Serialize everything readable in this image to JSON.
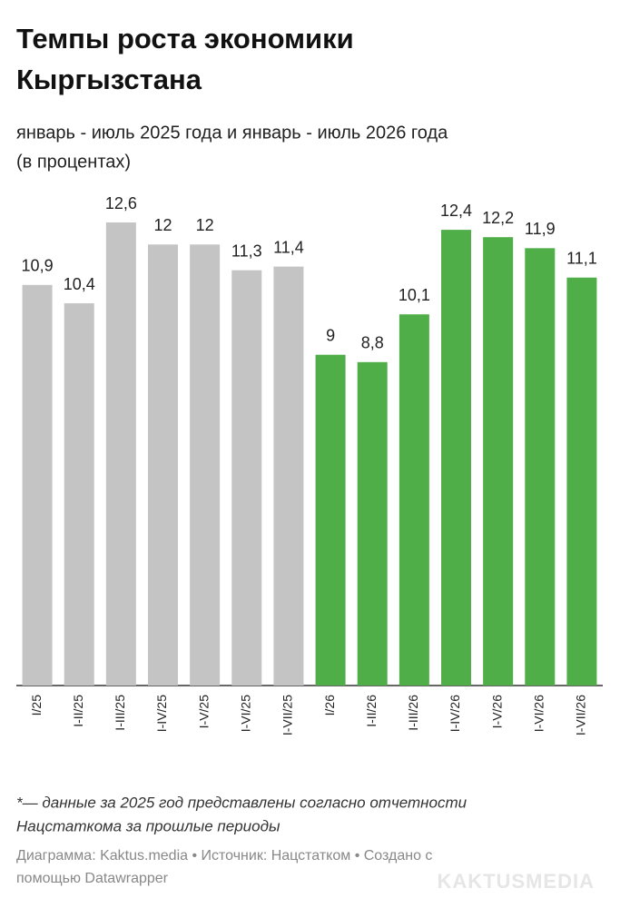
{
  "chart_data": {
    "type": "bar",
    "title": [
      "Темпы роста экономики",
      "Кыргызстана"
    ],
    "subtitle": [
      "январь - июль 2025 года и январь - июль 2026 года",
      "(в процентах)"
    ],
    "categories": [
      "I/25",
      "I-II/25",
      "I-III/25",
      "I-IV/25",
      "I-V/25",
      "I-VI/25",
      "I-VII/25",
      "I/26",
      "I-II/26",
      "I-III/26",
      "I-IV/26",
      "I-V/26",
      "I-VI/26",
      "I-VII/26"
    ],
    "values": [
      10.9,
      10.4,
      12.6,
      12,
      12,
      11.3,
      11.4,
      9,
      8.8,
      10.1,
      12.4,
      12.2,
      11.9,
      11.1
    ],
    "value_labels": [
      "10,9",
      "10,4",
      "12,6",
      "12",
      "12",
      "11,3",
      "11,4",
      "9",
      "8,8",
      "10,1",
      "12,4",
      "12,2",
      "11,9",
      "11,1"
    ],
    "colors": [
      "#c4c4c4",
      "#c4c4c4",
      "#c4c4c4",
      "#c4c4c4",
      "#c4c4c4",
      "#c4c4c4",
      "#c4c4c4",
      "#4fae48",
      "#4fae48",
      "#4fae48",
      "#4fae48",
      "#4fae48",
      "#4fae48",
      "#4fae48"
    ],
    "ylim": [
      0,
      12.6
    ],
    "notes": [
      "*— данные за 2025 год представлены согласно отчетности",
      "Нацстаткома за прошлые периоды"
    ],
    "credit": [
      "Диаграмма: Kaktus.media • Источник: Нацстатком • Создано с",
      "помощью Datawrapper"
    ],
    "watermark": "KAKTUSMEDIA"
  }
}
